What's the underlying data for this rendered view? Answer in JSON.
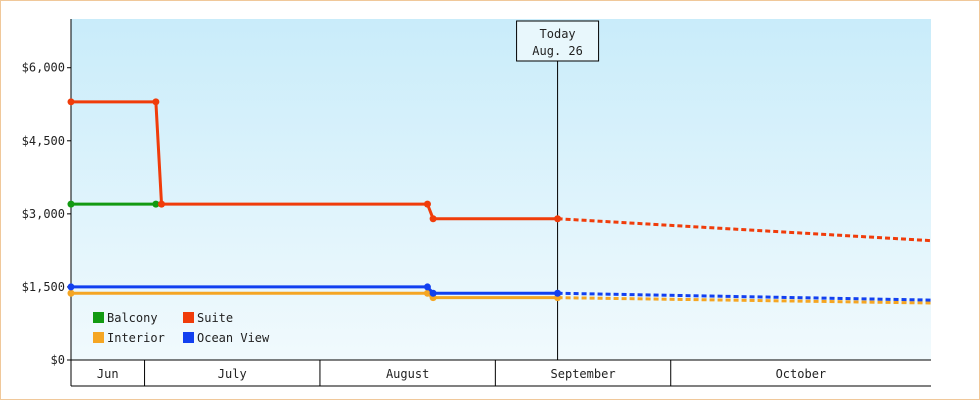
{
  "chart_data": {
    "type": "line",
    "y_axis": {
      "min": 0,
      "max": 7000,
      "ticks": [
        0,
        1500,
        3000,
        4500,
        6000
      ],
      "tick_labels": [
        "$0",
        "$1,500",
        "$3,000",
        "$4,500",
        "$6,000"
      ]
    },
    "x_axis": {
      "start": "2024-06-01",
      "end": "2024-10-31",
      "months": [
        {
          "label": "Jun",
          "start": "2024-06-01",
          "end": "2024-06-14"
        },
        {
          "label": "July",
          "start": "2024-06-14",
          "end": "2024-07-15"
        },
        {
          "label": "August",
          "start": "2024-07-15",
          "end": "2024-08-15"
        },
        {
          "label": "September",
          "start": "2024-08-15",
          "end": "2024-09-15"
        },
        {
          "label": "October",
          "start": "2024-09-15",
          "end": "2024-10-31"
        }
      ]
    },
    "today": {
      "label": "Today",
      "date_label": "Aug. 26",
      "date": "2024-08-26"
    },
    "series": [
      {
        "name": "Balcony",
        "color": "#129a12",
        "points": [
          [
            "2024-06-01",
            3200
          ],
          [
            "2024-06-16",
            3200
          ]
        ],
        "forecast": []
      },
      {
        "name": "Suite",
        "color": "#f03c0a",
        "points": [
          [
            "2024-06-01",
            5300
          ],
          [
            "2024-06-16",
            5300
          ],
          [
            "2024-06-17",
            3200
          ],
          [
            "2024-08-03",
            3200
          ],
          [
            "2024-08-04",
            2900
          ],
          [
            "2024-08-26",
            2900
          ]
        ],
        "forecast": [
          [
            "2024-08-26",
            2900
          ],
          [
            "2024-10-31",
            2450
          ]
        ]
      },
      {
        "name": "Interior",
        "color": "#f5a623",
        "points": [
          [
            "2024-06-01",
            1370
          ],
          [
            "2024-08-03",
            1370
          ],
          [
            "2024-08-04",
            1280
          ],
          [
            "2024-08-26",
            1280
          ]
        ],
        "forecast": [
          [
            "2024-08-26",
            1280
          ],
          [
            "2024-10-31",
            1170
          ]
        ]
      },
      {
        "name": "Ocean View",
        "color": "#1240f0",
        "points": [
          [
            "2024-06-01",
            1500
          ],
          [
            "2024-08-03",
            1500
          ],
          [
            "2024-08-04",
            1370
          ],
          [
            "2024-08-26",
            1370
          ]
        ],
        "forecast": [
          [
            "2024-08-26",
            1370
          ],
          [
            "2024-10-31",
            1230
          ]
        ]
      }
    ],
    "legend": {
      "placement": "bottom-left",
      "order": [
        "Balcony",
        "Suite",
        "Interior",
        "Ocean View"
      ]
    }
  }
}
